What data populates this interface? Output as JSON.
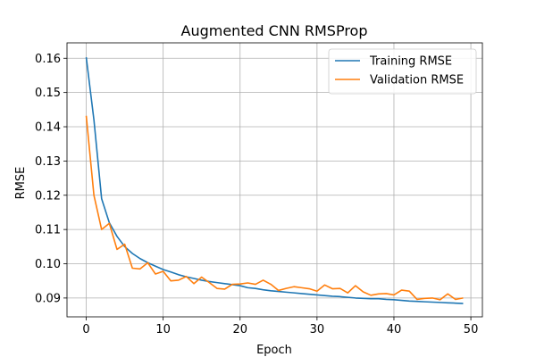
{
  "chart_data": {
    "type": "line",
    "title": "Augmented CNN RMSProp",
    "xlabel": "Epoch",
    "ylabel": "RMSE",
    "xlim": [
      -2.5,
      51.5
    ],
    "ylim": [
      0.0845,
      0.1645
    ],
    "xticks": [
      0,
      10,
      20,
      30,
      40,
      50
    ],
    "yticks": [
      0.09,
      0.1,
      0.11,
      0.12,
      0.13,
      0.14,
      0.15,
      0.16
    ],
    "ytick_labels": [
      "0.09",
      "0.10",
      "0.11",
      "0.12",
      "0.13",
      "0.14",
      "0.15",
      "0.16"
    ],
    "grid": true,
    "legend_position": "top-right",
    "series": [
      {
        "name": "Training RMSE",
        "color": "#1f77b4",
        "x": [
          0,
          1,
          2,
          3,
          4,
          5,
          6,
          7,
          8,
          9,
          10,
          11,
          12,
          13,
          14,
          15,
          16,
          17,
          18,
          19,
          20,
          21,
          22,
          23,
          24,
          25,
          26,
          27,
          28,
          29,
          30,
          31,
          32,
          33,
          34,
          35,
          36,
          37,
          38,
          39,
          40,
          41,
          42,
          43,
          44,
          45,
          46,
          47,
          48,
          49
        ],
        "values": [
          0.1603,
          0.142,
          0.119,
          0.112,
          0.108,
          0.105,
          0.103,
          0.1015,
          0.1003,
          0.0993,
          0.0983,
          0.0976,
          0.0968,
          0.0962,
          0.0957,
          0.0952,
          0.0948,
          0.0945,
          0.0942,
          0.0939,
          0.0936,
          0.093,
          0.0928,
          0.0924,
          0.0921,
          0.0919,
          0.0917,
          0.0915,
          0.0913,
          0.0911,
          0.0909,
          0.0907,
          0.0905,
          0.0904,
          0.0902,
          0.09,
          0.0899,
          0.0898,
          0.0898,
          0.0896,
          0.0895,
          0.0893,
          0.0891,
          0.089,
          0.0889,
          0.0888,
          0.0887,
          0.0886,
          0.0885,
          0.0884
        ]
      },
      {
        "name": "Validation RMSE",
        "color": "#ff7f0e",
        "x": [
          0,
          1,
          2,
          3,
          4,
          5,
          6,
          7,
          8,
          9,
          10,
          11,
          12,
          13,
          14,
          15,
          16,
          17,
          18,
          19,
          20,
          21,
          22,
          23,
          24,
          25,
          26,
          27,
          28,
          29,
          30,
          31,
          32,
          33,
          34,
          35,
          36,
          37,
          38,
          39,
          40,
          41,
          42,
          43,
          44,
          45,
          46,
          47,
          48,
          49
        ],
        "values": [
          0.1432,
          0.12,
          0.11,
          0.1118,
          0.1042,
          0.1057,
          0.0987,
          0.0985,
          0.1003,
          0.097,
          0.0978,
          0.095,
          0.0952,
          0.0963,
          0.0942,
          0.0961,
          0.0945,
          0.0928,
          0.0926,
          0.094,
          0.0941,
          0.0944,
          0.094,
          0.0952,
          0.094,
          0.0922,
          0.0928,
          0.0933,
          0.093,
          0.0927,
          0.092,
          0.0938,
          0.0927,
          0.0928,
          0.0915,
          0.0936,
          0.0918,
          0.0908,
          0.0912,
          0.0913,
          0.0909,
          0.0923,
          0.092,
          0.0896,
          0.0899,
          0.09,
          0.0895,
          0.0912,
          0.0896,
          0.09
        ]
      }
    ]
  }
}
